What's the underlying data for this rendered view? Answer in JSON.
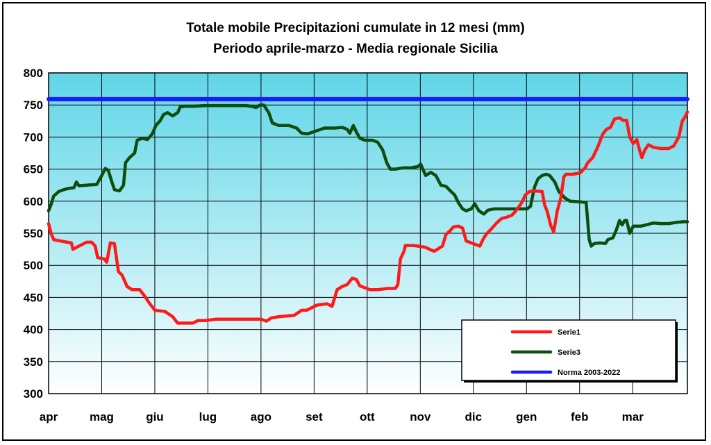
{
  "chart_data": {
    "type": "line",
    "title": "Totale mobile Precipitazioni cumulate in 12 mesi (mm)",
    "subtitle": "Periodo aprile-marzo  - Media regionale Sicilia",
    "categories": [
      "apr",
      "mag",
      "giu",
      "lug",
      "ago",
      "set",
      "ott",
      "nov",
      "dic",
      "gen",
      "feb",
      "mar"
    ],
    "ylim": [
      300,
      800
    ],
    "yticks": [
      300,
      350,
      400,
      450,
      500,
      550,
      600,
      650,
      700,
      750,
      800
    ],
    "grid": true,
    "legend_position": "bottom-right",
    "series": [
      {
        "name": "Serie1",
        "color": "#ff1a1a",
        "points": [
          [
            0.0,
            565
          ],
          [
            0.05,
            550
          ],
          [
            0.1,
            540
          ],
          [
            0.3,
            537
          ],
          [
            0.45,
            535
          ],
          [
            0.48,
            525
          ],
          [
            0.55,
            528
          ],
          [
            0.65,
            532
          ],
          [
            0.75,
            536
          ],
          [
            0.85,
            536
          ],
          [
            0.92,
            530
          ],
          [
            0.97,
            512
          ],
          [
            1.1,
            510
          ],
          [
            1.15,
            505
          ],
          [
            1.22,
            535
          ],
          [
            1.3,
            534
          ],
          [
            1.38,
            490
          ],
          [
            1.45,
            485
          ],
          [
            1.55,
            467
          ],
          [
            1.65,
            462
          ],
          [
            1.8,
            462
          ],
          [
            1.9,
            452
          ],
          [
            2.0,
            440
          ],
          [
            2.1,
            430
          ],
          [
            2.3,
            428
          ],
          [
            2.45,
            420
          ],
          [
            2.55,
            410
          ],
          [
            2.7,
            410
          ],
          [
            2.85,
            410
          ],
          [
            2.95,
            414
          ],
          [
            3.1,
            414
          ],
          [
            3.3,
            416
          ],
          [
            3.5,
            416
          ],
          [
            3.8,
            416
          ],
          [
            4.0,
            416
          ],
          [
            4.2,
            416
          ],
          [
            4.3,
            413
          ],
          [
            4.4,
            418
          ],
          [
            4.55,
            420
          ],
          [
            4.85,
            422
          ],
          [
            5.0,
            430
          ],
          [
            5.1,
            430
          ],
          [
            5.3,
            438
          ],
          [
            5.5,
            440
          ],
          [
            5.6,
            436
          ],
          [
            5.7,
            462
          ],
          [
            5.8,
            467
          ],
          [
            5.9,
            470
          ],
          [
            6.0,
            480
          ],
          [
            6.08,
            478
          ],
          [
            6.15,
            468
          ],
          [
            6.25,
            465
          ],
          [
            6.35,
            462
          ],
          [
            6.5,
            462
          ],
          [
            6.7,
            464
          ],
          [
            6.85,
            464
          ],
          [
            6.9,
            470
          ],
          [
            6.95,
            510
          ],
          [
            7.02,
            522
          ],
          [
            7.05,
            531
          ],
          [
            7.2,
            531
          ],
          [
            7.3,
            530
          ],
          [
            7.45,
            528
          ],
          [
            7.55,
            524
          ],
          [
            7.62,
            522
          ],
          [
            7.7,
            526
          ],
          [
            7.78,
            530
          ],
          [
            7.85,
            548
          ],
          [
            7.92,
            553
          ],
          [
            8.0,
            560
          ],
          [
            8.1,
            561
          ],
          [
            8.18,
            558
          ],
          [
            8.25,
            538
          ],
          [
            8.35,
            535
          ],
          [
            8.45,
            532
          ],
          [
            8.52,
            530
          ],
          [
            8.58,
            540
          ],
          [
            8.65,
            549
          ],
          [
            8.75,
            557
          ],
          [
            8.85,
            566
          ],
          [
            8.95,
            573
          ],
          [
            9.05,
            575
          ],
          [
            9.15,
            578
          ],
          [
            9.2,
            582
          ],
          [
            9.28,
            590
          ],
          [
            9.35,
            598
          ],
          [
            9.42,
            610
          ],
          [
            9.5,
            615
          ],
          [
            9.6,
            616
          ],
          [
            9.75,
            615
          ],
          [
            9.8,
            594
          ],
          [
            9.85,
            584
          ],
          [
            9.92,
            562
          ],
          [
            9.98,
            552
          ],
          [
            10.05,
            585
          ],
          [
            10.12,
            605
          ],
          [
            10.18,
            638
          ],
          [
            10.22,
            642
          ],
          [
            10.35,
            642
          ],
          [
            10.5,
            644
          ],
          [
            10.6,
            652
          ],
          [
            10.65,
            660
          ],
          [
            10.75,
            668
          ],
          [
            10.85,
            685
          ],
          [
            10.95,
            705
          ],
          [
            11.02,
            712
          ],
          [
            11.1,
            715
          ],
          [
            11.18,
            728
          ],
          [
            11.28,
            730
          ],
          [
            11.35,
            726
          ],
          [
            11.42,
            726
          ],
          [
            11.48,
            700
          ],
          [
            11.55,
            690
          ],
          [
            11.62,
            696
          ],
          [
            11.68,
            678
          ],
          [
            11.72,
            668
          ],
          [
            11.78,
            680
          ],
          [
            11.85,
            688
          ],
          [
            11.95,
            684
          ],
          [
            12.1,
            682
          ],
          [
            12.25,
            682
          ],
          [
            12.35,
            686
          ],
          [
            12.45,
            700
          ],
          [
            12.52,
            725
          ],
          [
            12.58,
            732
          ],
          [
            12.62,
            739
          ]
        ]
      },
      {
        "name": "Serie3",
        "color": "#0d4d0d",
        "points": [
          [
            0.0,
            585
          ],
          [
            0.05,
            595
          ],
          [
            0.1,
            608
          ],
          [
            0.2,
            615
          ],
          [
            0.3,
            618
          ],
          [
            0.4,
            620
          ],
          [
            0.5,
            621
          ],
          [
            0.55,
            630
          ],
          [
            0.6,
            624
          ],
          [
            0.75,
            625
          ],
          [
            0.95,
            626
          ],
          [
            1.05,
            640
          ],
          [
            1.12,
            651
          ],
          [
            1.18,
            648
          ],
          [
            1.25,
            630
          ],
          [
            1.3,
            618
          ],
          [
            1.4,
            616
          ],
          [
            1.48,
            625
          ],
          [
            1.52,
            660
          ],
          [
            1.6,
            668
          ],
          [
            1.7,
            675
          ],
          [
            1.75,
            695
          ],
          [
            1.85,
            698
          ],
          [
            1.95,
            696
          ],
          [
            2.05,
            705
          ],
          [
            2.12,
            718
          ],
          [
            2.2,
            725
          ],
          [
            2.27,
            735
          ],
          [
            2.35,
            738
          ],
          [
            2.45,
            733
          ],
          [
            2.55,
            738
          ],
          [
            2.6,
            747
          ],
          [
            2.7,
            748
          ],
          [
            2.85,
            748
          ],
          [
            3.1,
            749
          ],
          [
            3.5,
            749
          ],
          [
            3.9,
            749
          ],
          [
            4.0,
            748
          ],
          [
            4.1,
            746
          ],
          [
            4.18,
            750
          ],
          [
            4.25,
            750
          ],
          [
            4.35,
            738
          ],
          [
            4.42,
            722
          ],
          [
            4.55,
            718
          ],
          [
            4.75,
            718
          ],
          [
            4.9,
            714
          ],
          [
            5.0,
            706
          ],
          [
            5.12,
            705
          ],
          [
            5.3,
            710
          ],
          [
            5.45,
            714
          ],
          [
            5.65,
            714
          ],
          [
            5.8,
            715
          ],
          [
            5.9,
            712
          ],
          [
            5.95,
            706
          ],
          [
            6.02,
            718
          ],
          [
            6.08,
            708
          ],
          [
            6.15,
            698
          ],
          [
            6.25,
            695
          ],
          [
            6.4,
            695
          ],
          [
            6.5,
            692
          ],
          [
            6.6,
            680
          ],
          [
            6.68,
            660
          ],
          [
            6.75,
            650
          ],
          [
            6.85,
            650
          ],
          [
            7.0,
            652
          ],
          [
            7.15,
            652
          ],
          [
            7.3,
            654
          ],
          [
            7.35,
            658
          ],
          [
            7.45,
            640
          ],
          [
            7.55,
            645
          ],
          [
            7.65,
            640
          ],
          [
            7.75,
            625
          ],
          [
            7.85,
            623
          ],
          [
            7.95,
            615
          ],
          [
            8.02,
            610
          ],
          [
            8.1,
            597
          ],
          [
            8.18,
            588
          ],
          [
            8.25,
            585
          ],
          [
            8.35,
            588
          ],
          [
            8.42,
            596
          ],
          [
            8.5,
            585
          ],
          [
            8.6,
            580
          ],
          [
            8.68,
            586
          ],
          [
            8.8,
            588
          ],
          [
            9.0,
            588
          ],
          [
            9.3,
            588
          ],
          [
            9.45,
            588
          ],
          [
            9.52,
            592
          ],
          [
            9.6,
            622
          ],
          [
            9.67,
            635
          ],
          [
            9.75,
            640
          ],
          [
            9.83,
            642
          ],
          [
            9.9,
            640
          ],
          [
            10.0,
            630
          ],
          [
            10.08,
            615
          ],
          [
            10.2,
            605
          ],
          [
            10.3,
            600
          ],
          [
            10.5,
            599
          ],
          [
            10.62,
            598
          ],
          [
            10.68,
            540
          ],
          [
            10.72,
            530
          ],
          [
            10.78,
            534
          ],
          [
            10.9,
            535
          ],
          [
            11.0,
            534
          ],
          [
            11.05,
            540
          ],
          [
            11.15,
            543
          ],
          [
            11.22,
            556
          ],
          [
            11.28,
            570
          ],
          [
            11.33,
            563
          ],
          [
            11.38,
            570
          ],
          [
            11.42,
            570
          ],
          [
            11.48,
            550
          ],
          [
            11.55,
            561
          ],
          [
            11.7,
            561
          ],
          [
            11.85,
            564
          ],
          [
            11.95,
            566
          ],
          [
            12.1,
            565
          ],
          [
            12.25,
            565
          ],
          [
            12.4,
            567
          ],
          [
            12.55,
            568
          ],
          [
            12.62,
            568
          ]
        ]
      },
      {
        "name": "Norma 2003-2022",
        "color": "#1a1aff",
        "points": [
          [
            0.0,
            759
          ],
          [
            12.62,
            759
          ]
        ]
      }
    ]
  }
}
